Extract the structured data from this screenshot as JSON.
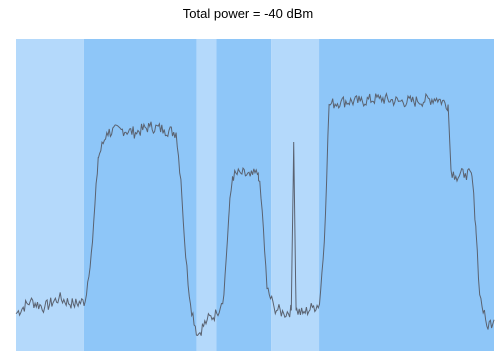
{
  "title": "Total power = -40 dBm",
  "colors": {
    "band_light": "#b4d9fb",
    "band_dark": "#8ec6f8",
    "trace": "#5a6270"
  },
  "chart_data": {
    "type": "line",
    "title": "Total power = -40 dBm",
    "xlabel": "",
    "ylabel": "",
    "xlim": [
      0,
      100
    ],
    "ylim": [
      0,
      100
    ],
    "grid": false,
    "bands": [
      {
        "from": 0,
        "to": 14.2,
        "shade": "light"
      },
      {
        "from": 14.2,
        "to": 37.8,
        "shade": "dark"
      },
      {
        "from": 37.8,
        "to": 41.9,
        "shade": "light"
      },
      {
        "from": 41.9,
        "to": 53.4,
        "shade": "dark"
      },
      {
        "from": 53.4,
        "to": 63.4,
        "shade": "light"
      },
      {
        "from": 63.4,
        "to": 100,
        "shade": "dark"
      }
    ],
    "series": [
      {
        "name": "",
        "x": [
          0,
          3,
          6,
          9,
          12,
          14.5,
          16,
          17.2,
          19,
          22,
          25,
          28,
          31,
          33.5,
          34.5,
          35.5,
          36.5,
          38,
          40,
          42,
          43.5,
          44.6,
          45.3,
          47,
          49,
          50.7,
          51.5,
          52.5,
          54,
          56,
          57.6,
          58.1,
          58.6,
          60,
          62,
          63.5,
          64.5,
          65.5,
          68,
          72,
          76,
          80,
          84,
          88,
          90.4,
          91,
          92,
          94,
          95.4,
          96.2,
          97,
          98.5,
          100
        ],
        "y": [
          12,
          16,
          14,
          17,
          15,
          16,
          35,
          62,
          70,
          71,
          70,
          72,
          71,
          70,
          55,
          30,
          15,
          5,
          10,
          12,
          18,
          45,
          56,
          57,
          56,
          57,
          45,
          20,
          14,
          12,
          13,
          67,
          13,
          12,
          14,
          15,
          35,
          79,
          80,
          80,
          81,
          80,
          80,
          81,
          79,
          58,
          56,
          57,
          56,
          40,
          18,
          8,
          10
        ]
      }
    ]
  }
}
